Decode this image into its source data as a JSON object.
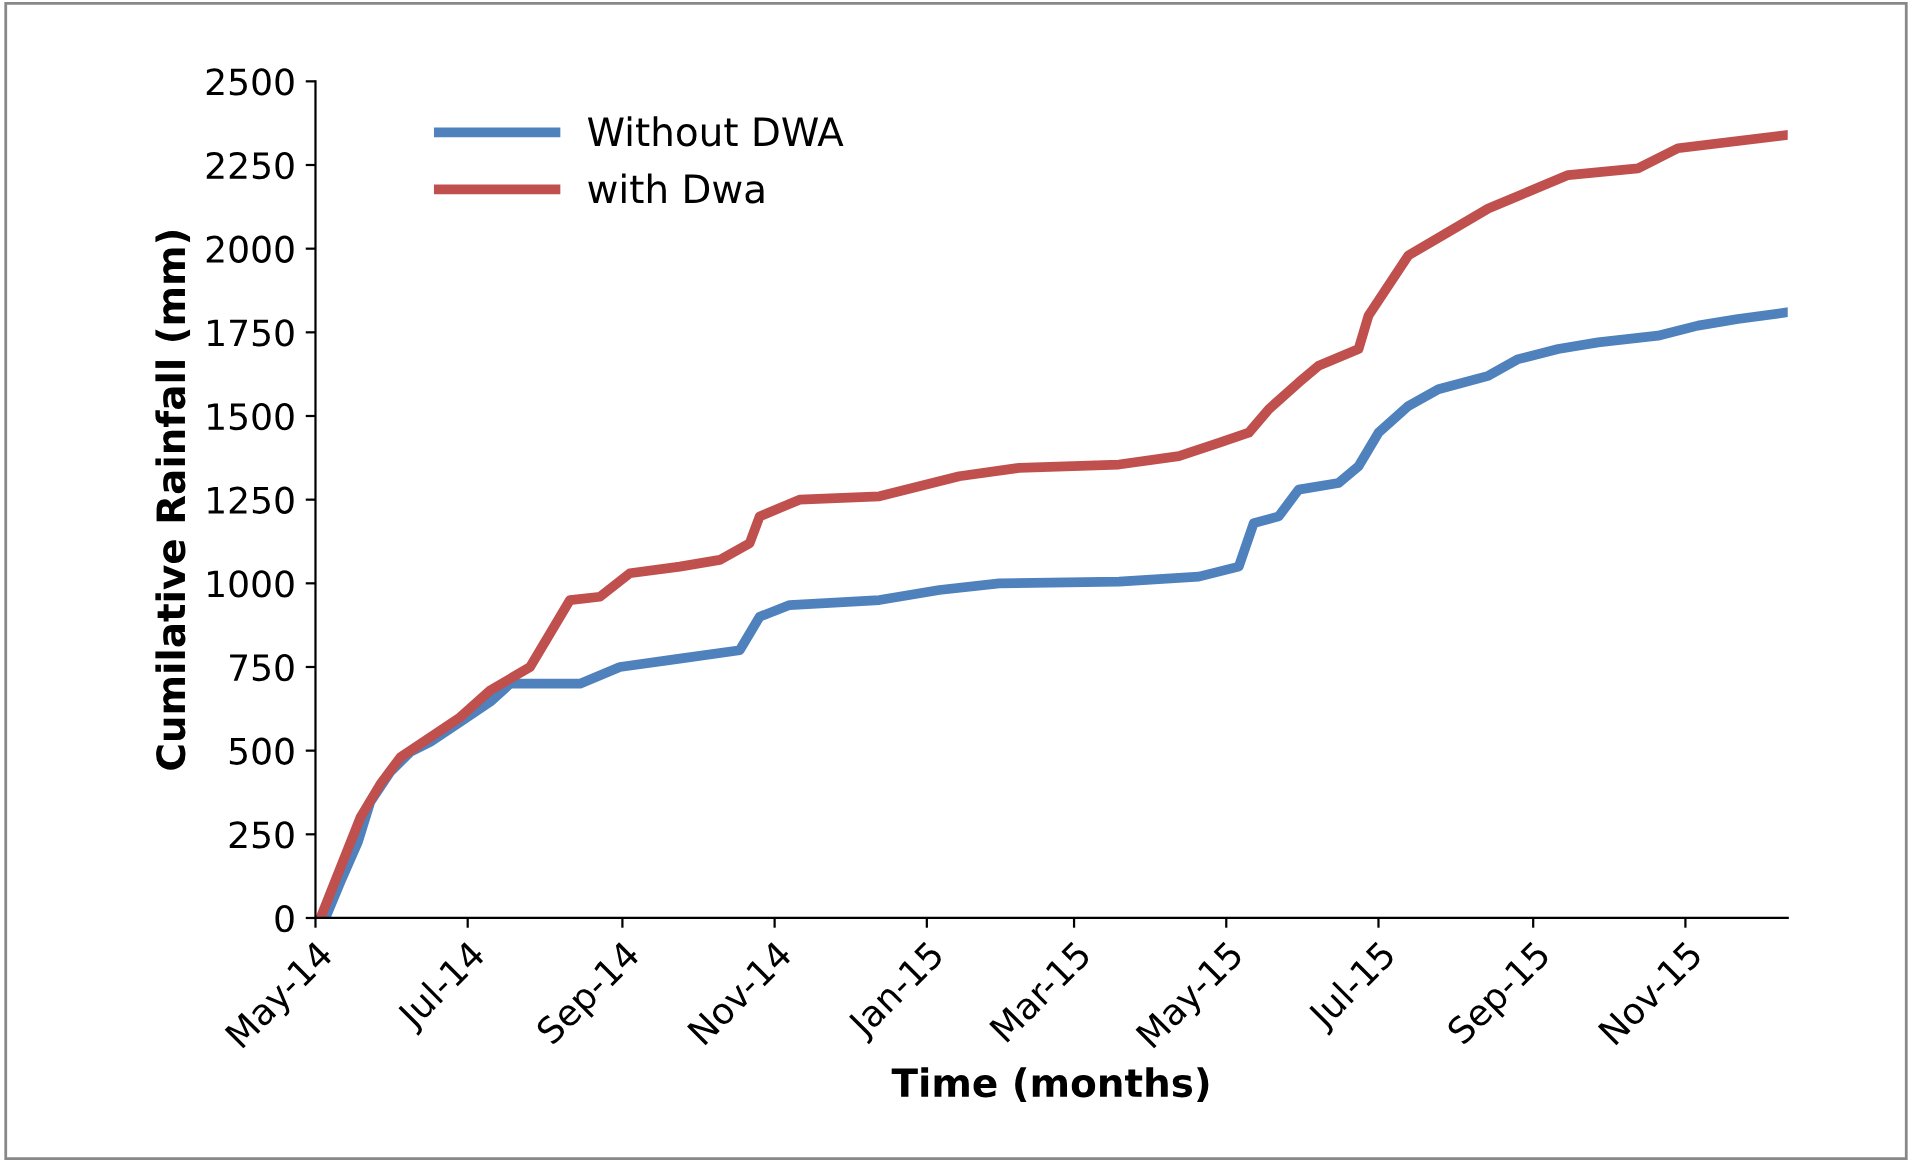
{
  "chart_data": {
    "type": "line",
    "xlabel": "Time (months)",
    "ylabel": "Cumilative Rainfall (mm)",
    "xlim": [
      "2014-05-01",
      "2015-12-12"
    ],
    "xticks": [
      {
        "value": "2014-05-01",
        "label": "May-14"
      },
      {
        "value": "2014-07-01",
        "label": "Jul-14"
      },
      {
        "value": "2014-09-01",
        "label": "Sep-14"
      },
      {
        "value": "2014-11-01",
        "label": "Nov-14"
      },
      {
        "value": "2015-01-01",
        "label": "Jan-15"
      },
      {
        "value": "2015-03-01",
        "label": "Mar-15"
      },
      {
        "value": "2015-05-01",
        "label": "May-15"
      },
      {
        "value": "2015-07-01",
        "label": "Jul-15"
      },
      {
        "value": "2015-09-01",
        "label": "Sep-15"
      },
      {
        "value": "2015-11-01",
        "label": "Nov-15"
      }
    ],
    "ylim": [
      0,
      2500
    ],
    "yticks": [
      0,
      250,
      500,
      750,
      1000,
      1250,
      1500,
      1750,
      2000,
      2250,
      2500
    ],
    "grid": false,
    "legend": "top left",
    "marker": "none",
    "line_style": "solid",
    "series": [
      {
        "name": "Without DWA",
        "color": "#4f81bd",
        "x": [
          "2014-05-05",
          "2014-05-11",
          "2014-05-18",
          "2014-05-23",
          "2014-05-31",
          "2014-06-08",
          "2014-06-16",
          "2014-06-28",
          "2014-07-10",
          "2014-07-18",
          "2014-08-15",
          "2014-08-31",
          "2014-09-24",
          "2014-10-18",
          "2014-10-26",
          "2014-11-07",
          "2014-12-13",
          "2015-01-06",
          "2015-01-30",
          "2015-03-19",
          "2015-04-20",
          "2015-05-06",
          "2015-05-12",
          "2015-05-22",
          "2015-05-30",
          "2015-06-15",
          "2015-06-23",
          "2015-07-01",
          "2015-07-13",
          "2015-07-25",
          "2015-08-14",
          "2015-08-26",
          "2015-09-11",
          "2015-09-27",
          "2015-10-21",
          "2015-11-06",
          "2015-11-22",
          "2015-12-12"
        ],
        "values": [
          0,
          108,
          227,
          347,
          437,
          496,
          526,
          586,
          646,
          700,
          700,
          750,
          775,
          800,
          900,
          935,
          950,
          980,
          1000,
          1005,
          1020,
          1050,
          1180,
          1200,
          1280,
          1300,
          1350,
          1450,
          1530,
          1580,
          1620,
          1670,
          1700,
          1720,
          1740,
          1770,
          1790,
          1810
        ]
      },
      {
        "name": "with Dwa",
        "color": "#c0504d",
        "x": [
          "2014-05-03",
          "2014-05-11",
          "2014-05-19",
          "2014-05-27",
          "2014-06-04",
          "2014-06-16",
          "2014-06-28",
          "2014-07-10",
          "2014-07-26",
          "2014-08-03",
          "2014-08-11",
          "2014-08-23",
          "2014-09-04",
          "2014-09-24",
          "2014-10-10",
          "2014-10-22",
          "2014-10-26",
          "2014-11-11",
          "2014-12-13",
          "2014-12-29",
          "2015-01-14",
          "2015-02-07",
          "2015-03-19",
          "2015-04-12",
          "2015-04-28",
          "2015-05-10",
          "2015-05-18",
          "2015-05-30",
          "2015-06-07",
          "2015-06-23",
          "2015-06-27",
          "2015-07-13",
          "2015-07-29",
          "2015-08-14",
          "2015-08-30",
          "2015-09-15",
          "2015-10-13",
          "2015-10-29",
          "2015-12-12"
        ],
        "values": [
          0,
          150,
          300,
          400,
          480,
          540,
          600,
          680,
          750,
          850,
          950,
          960,
          1030,
          1050,
          1070,
          1120,
          1200,
          1250,
          1260,
          1290,
          1320,
          1345,
          1355,
          1380,
          1420,
          1450,
          1520,
          1600,
          1650,
          1700,
          1800,
          1980,
          2050,
          2120,
          2170,
          2220,
          2240,
          2300,
          2340
        ]
      }
    ]
  }
}
